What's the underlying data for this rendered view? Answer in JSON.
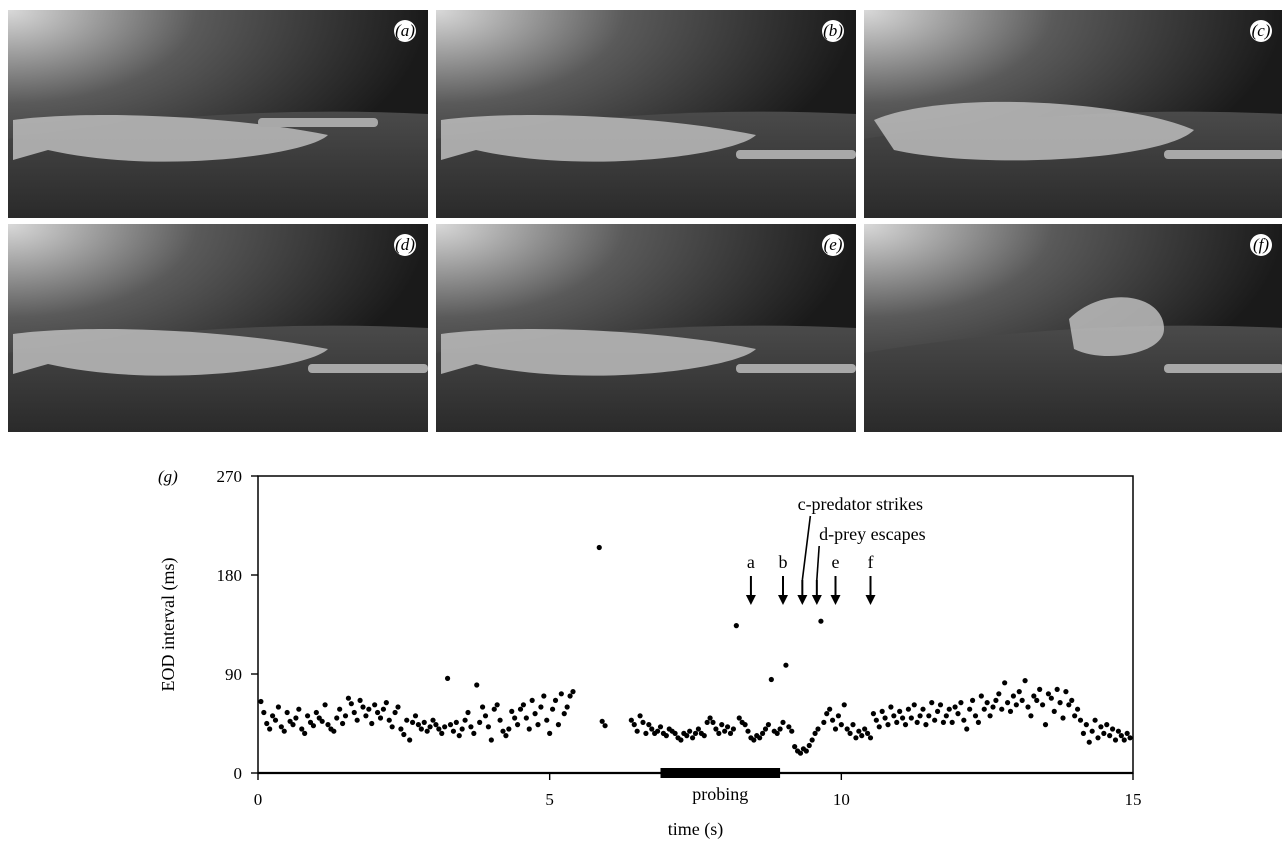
{
  "panels": [
    {
      "label": "(a)"
    },
    {
      "label": "(b)"
    },
    {
      "label": "(c)"
    },
    {
      "label": "(d)"
    },
    {
      "label": "(e)"
    },
    {
      "label": "(f)"
    }
  ],
  "chart_data": {
    "type": "scatter",
    "panel_label": "(g)",
    "xlabel": "time (s)",
    "ylabel": "EOD interval (ms)",
    "xlim": [
      0,
      15
    ],
    "ylim": [
      0,
      270
    ],
    "xticks": [
      0,
      5,
      10,
      15
    ],
    "yticks": [
      0,
      90,
      180,
      270
    ],
    "grid": false,
    "probing_bar": {
      "label": "probing",
      "start": 6.9,
      "end": 8.95
    },
    "event_arrows": [
      {
        "label": "a",
        "x": 8.45
      },
      {
        "label": "b",
        "x": 9.0
      },
      {
        "label": "e",
        "x": 9.9
      },
      {
        "label": "f",
        "x": 10.5
      }
    ],
    "event_callouts": [
      {
        "label": "c-predator strikes",
        "x": 9.4
      },
      {
        "label": "d-prey escapes",
        "x": 9.58
      }
    ],
    "points": [
      [
        0.05,
        65
      ],
      [
        0.1,
        55
      ],
      [
        0.15,
        45
      ],
      [
        0.2,
        40
      ],
      [
        0.25,
        52
      ],
      [
        0.3,
        48
      ],
      [
        0.35,
        60
      ],
      [
        0.4,
        42
      ],
      [
        0.45,
        38
      ],
      [
        0.5,
        55
      ],
      [
        0.55,
        47
      ],
      [
        0.6,
        44
      ],
      [
        0.65,
        50
      ],
      [
        0.7,
        58
      ],
      [
        0.75,
        40
      ],
      [
        0.8,
        36
      ],
      [
        0.85,
        52
      ],
      [
        0.9,
        46
      ],
      [
        0.95,
        43
      ],
      [
        1.0,
        55
      ],
      [
        1.05,
        50
      ],
      [
        1.1,
        47
      ],
      [
        1.15,
        62
      ],
      [
        1.2,
        44
      ],
      [
        1.25,
        40
      ],
      [
        1.3,
        38
      ],
      [
        1.35,
        50
      ],
      [
        1.4,
        58
      ],
      [
        1.45,
        45
      ],
      [
        1.5,
        52
      ],
      [
        1.55,
        68
      ],
      [
        1.6,
        63
      ],
      [
        1.65,
        55
      ],
      [
        1.7,
        48
      ],
      [
        1.75,
        66
      ],
      [
        1.8,
        60
      ],
      [
        1.85,
        52
      ],
      [
        1.9,
        58
      ],
      [
        1.95,
        45
      ],
      [
        2.0,
        62
      ],
      [
        2.05,
        55
      ],
      [
        2.1,
        50
      ],
      [
        2.15,
        58
      ],
      [
        2.2,
        64
      ],
      [
        2.25,
        48
      ],
      [
        2.3,
        42
      ],
      [
        2.35,
        55
      ],
      [
        2.4,
        60
      ],
      [
        2.45,
        40
      ],
      [
        2.5,
        35
      ],
      [
        2.55,
        48
      ],
      [
        2.6,
        30
      ],
      [
        2.65,
        46
      ],
      [
        2.7,
        52
      ],
      [
        2.75,
        44
      ],
      [
        2.8,
        40
      ],
      [
        2.85,
        46
      ],
      [
        2.9,
        38
      ],
      [
        2.95,
        42
      ],
      [
        3.0,
        48
      ],
      [
        3.05,
        44
      ],
      [
        3.1,
        40
      ],
      [
        3.15,
        36
      ],
      [
        3.2,
        42
      ],
      [
        3.25,
        86
      ],
      [
        3.3,
        44
      ],
      [
        3.35,
        38
      ],
      [
        3.4,
        46
      ],
      [
        3.45,
        34
      ],
      [
        3.5,
        40
      ],
      [
        3.55,
        48
      ],
      [
        3.6,
        55
      ],
      [
        3.65,
        42
      ],
      [
        3.7,
        36
      ],
      [
        3.75,
        80
      ],
      [
        3.8,
        46
      ],
      [
        3.85,
        60
      ],
      [
        3.9,
        52
      ],
      [
        3.95,
        42
      ],
      [
        4.0,
        30
      ],
      [
        4.05,
        58
      ],
      [
        4.1,
        62
      ],
      [
        4.15,
        48
      ],
      [
        4.2,
        38
      ],
      [
        4.25,
        34
      ],
      [
        4.3,
        40
      ],
      [
        4.35,
        56
      ],
      [
        4.4,
        50
      ],
      [
        4.45,
        44
      ],
      [
        4.5,
        58
      ],
      [
        4.55,
        62
      ],
      [
        4.6,
        50
      ],
      [
        4.65,
        40
      ],
      [
        4.7,
        66
      ],
      [
        4.75,
        54
      ],
      [
        4.8,
        44
      ],
      [
        4.85,
        60
      ],
      [
        4.9,
        70
      ],
      [
        4.95,
        48
      ],
      [
        5.0,
        36
      ],
      [
        5.05,
        58
      ],
      [
        5.1,
        66
      ],
      [
        5.15,
        44
      ],
      [
        5.2,
        72
      ],
      [
        5.25,
        54
      ],
      [
        5.3,
        60
      ],
      [
        5.35,
        70
      ],
      [
        5.4,
        74
      ],
      [
        5.85,
        205
      ],
      [
        5.9,
        47
      ],
      [
        5.95,
        43
      ],
      [
        6.4,
        48
      ],
      [
        6.45,
        44
      ],
      [
        6.5,
        38
      ],
      [
        6.55,
        52
      ],
      [
        6.6,
        46
      ],
      [
        6.65,
        36
      ],
      [
        6.7,
        44
      ],
      [
        6.75,
        40
      ],
      [
        6.8,
        36
      ],
      [
        6.85,
        38
      ],
      [
        6.9,
        42
      ],
      [
        6.95,
        36
      ],
      [
        7.0,
        34
      ],
      [
        7.05,
        40
      ],
      [
        7.1,
        38
      ],
      [
        7.15,
        36
      ],
      [
        7.2,
        32
      ],
      [
        7.25,
        30
      ],
      [
        7.3,
        36
      ],
      [
        7.35,
        34
      ],
      [
        7.4,
        38
      ],
      [
        7.45,
        32
      ],
      [
        7.5,
        36
      ],
      [
        7.55,
        40
      ],
      [
        7.6,
        36
      ],
      [
        7.65,
        34
      ],
      [
        7.7,
        46
      ],
      [
        7.75,
        50
      ],
      [
        7.8,
        46
      ],
      [
        7.85,
        40
      ],
      [
        7.9,
        36
      ],
      [
        7.95,
        44
      ],
      [
        8.0,
        38
      ],
      [
        8.05,
        42
      ],
      [
        8.1,
        36
      ],
      [
        8.15,
        40
      ],
      [
        8.2,
        134
      ],
      [
        8.25,
        50
      ],
      [
        8.3,
        46
      ],
      [
        8.35,
        44
      ],
      [
        8.4,
        38
      ],
      [
        8.45,
        32
      ],
      [
        8.5,
        30
      ],
      [
        8.55,
        34
      ],
      [
        8.6,
        32
      ],
      [
        8.65,
        36
      ],
      [
        8.7,
        40
      ],
      [
        8.75,
        44
      ],
      [
        8.8,
        85
      ],
      [
        8.85,
        38
      ],
      [
        8.9,
        36
      ],
      [
        8.95,
        40
      ],
      [
        9.0,
        46
      ],
      [
        9.05,
        98
      ],
      [
        9.1,
        42
      ],
      [
        9.15,
        38
      ],
      [
        9.2,
        24
      ],
      [
        9.25,
        20
      ],
      [
        9.3,
        18
      ],
      [
        9.35,
        22
      ],
      [
        9.4,
        20
      ],
      [
        9.45,
        25
      ],
      [
        9.5,
        30
      ],
      [
        9.55,
        36
      ],
      [
        9.6,
        40
      ],
      [
        9.65,
        138
      ],
      [
        9.7,
        46
      ],
      [
        9.75,
        54
      ],
      [
        9.8,
        58
      ],
      [
        9.85,
        48
      ],
      [
        9.9,
        40
      ],
      [
        9.95,
        52
      ],
      [
        10.0,
        44
      ],
      [
        10.05,
        62
      ],
      [
        10.1,
        40
      ],
      [
        10.15,
        36
      ],
      [
        10.2,
        44
      ],
      [
        10.25,
        32
      ],
      [
        10.3,
        38
      ],
      [
        10.35,
        34
      ],
      [
        10.4,
        40
      ],
      [
        10.45,
        36
      ],
      [
        10.5,
        32
      ],
      [
        10.55,
        54
      ],
      [
        10.6,
        48
      ],
      [
        10.65,
        42
      ],
      [
        10.7,
        56
      ],
      [
        10.75,
        50
      ],
      [
        10.8,
        44
      ],
      [
        10.85,
        60
      ],
      [
        10.9,
        52
      ],
      [
        10.95,
        46
      ],
      [
        11.0,
        56
      ],
      [
        11.05,
        50
      ],
      [
        11.1,
        44
      ],
      [
        11.15,
        58
      ],
      [
        11.2,
        50
      ],
      [
        11.25,
        62
      ],
      [
        11.3,
        46
      ],
      [
        11.35,
        52
      ],
      [
        11.4,
        58
      ],
      [
        11.45,
        44
      ],
      [
        11.5,
        52
      ],
      [
        11.55,
        64
      ],
      [
        11.6,
        48
      ],
      [
        11.65,
        56
      ],
      [
        11.7,
        62
      ],
      [
        11.75,
        46
      ],
      [
        11.8,
        52
      ],
      [
        11.85,
        58
      ],
      [
        11.9,
        46
      ],
      [
        11.95,
        60
      ],
      [
        12.0,
        54
      ],
      [
        12.05,
        64
      ],
      [
        12.1,
        48
      ],
      [
        12.15,
        40
      ],
      [
        12.2,
        58
      ],
      [
        12.25,
        66
      ],
      [
        12.3,
        52
      ],
      [
        12.35,
        46
      ],
      [
        12.4,
        70
      ],
      [
        12.45,
        58
      ],
      [
        12.5,
        64
      ],
      [
        12.55,
        52
      ],
      [
        12.6,
        60
      ],
      [
        12.65,
        66
      ],
      [
        12.7,
        72
      ],
      [
        12.75,
        58
      ],
      [
        12.8,
        82
      ],
      [
        12.85,
        64
      ],
      [
        12.9,
        56
      ],
      [
        12.95,
        70
      ],
      [
        13.0,
        62
      ],
      [
        13.05,
        74
      ],
      [
        13.1,
        66
      ],
      [
        13.15,
        84
      ],
      [
        13.2,
        60
      ],
      [
        13.25,
        52
      ],
      [
        13.3,
        70
      ],
      [
        13.35,
        66
      ],
      [
        13.4,
        76
      ],
      [
        13.45,
        62
      ],
      [
        13.5,
        44
      ],
      [
        13.55,
        72
      ],
      [
        13.6,
        68
      ],
      [
        13.65,
        56
      ],
      [
        13.7,
        76
      ],
      [
        13.75,
        64
      ],
      [
        13.8,
        50
      ],
      [
        13.85,
        74
      ],
      [
        13.9,
        62
      ],
      [
        13.95,
        66
      ],
      [
        14.0,
        52
      ],
      [
        14.05,
        58
      ],
      [
        14.1,
        48
      ],
      [
        14.15,
        36
      ],
      [
        14.2,
        44
      ],
      [
        14.25,
        28
      ],
      [
        14.3,
        38
      ],
      [
        14.35,
        48
      ],
      [
        14.4,
        32
      ],
      [
        14.45,
        42
      ],
      [
        14.5,
        36
      ],
      [
        14.55,
        44
      ],
      [
        14.6,
        34
      ],
      [
        14.65,
        40
      ],
      [
        14.7,
        30
      ],
      [
        14.75,
        38
      ],
      [
        14.8,
        34
      ],
      [
        14.85,
        30
      ],
      [
        14.9,
        36
      ],
      [
        14.95,
        32
      ]
    ]
  }
}
